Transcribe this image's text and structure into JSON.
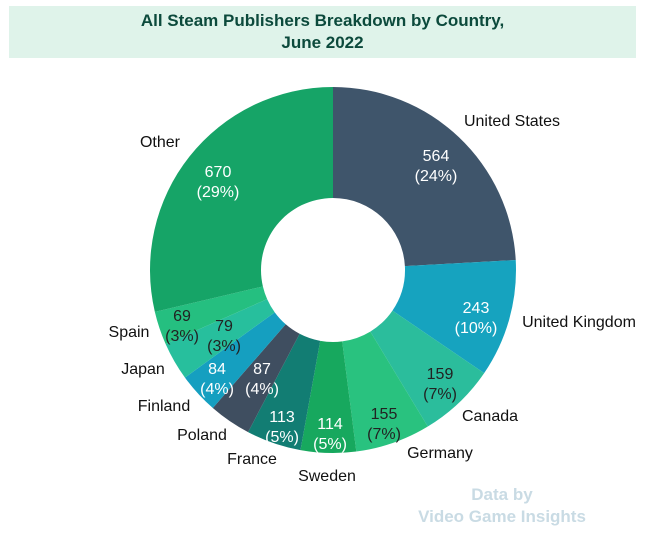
{
  "title_lines": [
    "All Steam Publishers Breakdown by Country,",
    "June 2022"
  ],
  "watermark_lines": [
    "Data by",
    "Video Game Insights"
  ],
  "chart_data": {
    "type": "pie",
    "title": "All Steam Publishers Breakdown by Country, June 2022",
    "categories": [
      "United States",
      "United Kingdom",
      "Canada",
      "Germany",
      "Sweden",
      "France",
      "Poland",
      "Finland",
      "Japan",
      "Spain",
      "Other"
    ],
    "values": [
      564,
      243,
      159,
      155,
      114,
      113,
      87,
      84,
      79,
      69,
      670
    ],
    "percent_labels": [
      "(24%)",
      "(10%)",
      "(7%)",
      "(7%)",
      "(5%)",
      "(5%)",
      "(4%)",
      "(4%)",
      "(3%)",
      "(3%)",
      "(29%)"
    ],
    "colors": [
      "#3f556b",
      "#16a3bf",
      "#2bbd9c",
      "#29c27f",
      "#17a85e",
      "#127d73",
      "#3f4e60",
      "#159fc0",
      "#27bf9d",
      "#25bf80",
      "#16a467"
    ],
    "value_label_colors": [
      "#ffffff",
      "#ffffff",
      "#222222",
      "#222222",
      "#ffffff",
      "#ffffff",
      "#ffffff",
      "#ffffff",
      "#222222",
      "#222222",
      "#ffffff"
    ],
    "donut": true,
    "start_angle_deg": 0,
    "legend": "none"
  }
}
